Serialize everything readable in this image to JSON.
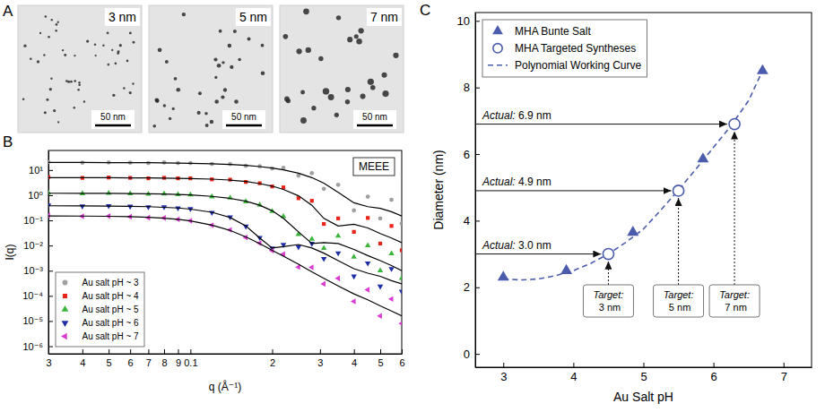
{
  "chart_data": [
    {
      "type": "image",
      "label": "A",
      "images": [
        {
          "title": "3 nm",
          "scale_bar": "50 nm"
        },
        {
          "title": "5 nm",
          "scale_bar": "50 nm"
        },
        {
          "title": "7 nm",
          "scale_bar": "50 nm"
        }
      ]
    },
    {
      "type": "scatter",
      "label": "B",
      "x_label": "q (Å⁻¹)",
      "y_label": "I(q)",
      "annotation": "MEEE",
      "log": true,
      "legend": "bottom-left",
      "x": [
        0.03,
        0.04,
        0.05,
        0.06,
        0.07,
        0.08,
        0.09,
        0.1,
        0.12,
        0.14,
        0.16,
        0.18,
        0.2,
        0.22,
        0.25,
        0.28,
        0.31,
        0.35,
        0.4,
        0.45,
        0.5,
        0.55,
        0.6
      ],
      "xlim": [
        0.03,
        0.6
      ],
      "xticks": [
        {
          "value": 0.03,
          "label": "3"
        },
        {
          "value": 0.04,
          "label": "4"
        },
        {
          "value": 0.05,
          "label": "5"
        },
        {
          "value": 0.06,
          "label": "6"
        },
        {
          "value": 0.07,
          "label": "7"
        },
        {
          "value": 0.08,
          "label": "8"
        },
        {
          "value": 0.09,
          "label": "9"
        },
        0.1,
        {
          "value": 0.2,
          "label": "2"
        },
        {
          "value": 0.3,
          "label": "3"
        },
        {
          "value": 0.4,
          "label": "4"
        },
        {
          "value": 0.5,
          "label": "5"
        },
        {
          "value": 0.6,
          "label": "6"
        }
      ],
      "ylim": [
        5e-07,
        60
      ],
      "yticks": [
        {
          "value": 1e-06,
          "label": "10⁻⁶"
        },
        {
          "value": 1e-05,
          "label": "10⁻⁵"
        },
        {
          "value": 0.0001,
          "label": "10⁻⁴"
        },
        {
          "value": 0.001,
          "label": "10⁻³"
        },
        {
          "value": 0.01,
          "label": "10⁻²"
        },
        {
          "value": 0.1,
          "label": "10⁻¹"
        },
        {
          "value": 1,
          "label": "10⁰"
        },
        {
          "value": 10,
          "label": "10¹"
        }
      ],
      "series": [
        {
          "name": "Au salt pH ~ 3",
          "color": "#a0a0a0",
          "marker": "circle",
          "values": [
            21,
            19.5,
            20.2,
            19.7,
            18.9,
            19.9,
            19,
            19,
            17.4,
            17.4,
            14.7,
            14.1,
            11.6,
            12.2,
            6,
            7.5,
            1.8,
            2.6,
            0.25,
            0.88,
            0.12,
            0.66,
            0.075
          ],
          "fit": [
            20,
            19.9,
            19.8,
            19.7,
            19.5,
            19.3,
            19,
            18.6,
            17.8,
            16.7,
            15.3,
            13.7,
            12,
            10.2,
            7.5,
            5,
            3,
            1.3,
            0.5,
            0.35,
            0.3,
            0.22,
            0.15
          ]
        },
        {
          "name": "Au salt pH ~ 4",
          "color": "#e8251b",
          "marker": "square",
          "values": [
            5.25,
            4.88,
            5.05,
            4.9,
            4.7,
            4.92,
            4.7,
            4.69,
            4.26,
            4.16,
            3.36,
            2.99,
            2.23,
            2.04,
            0.76,
            0.6,
            0.072,
            0.12,
            0.035,
            0.125,
            0.012,
            0.06,
            0.0065
          ],
          "fit": [
            5,
            4.98,
            4.95,
            4.9,
            4.85,
            4.78,
            4.7,
            4.6,
            4.35,
            4.0,
            3.5,
            2.9,
            2.3,
            1.7,
            0.95,
            0.4,
            0.12,
            0.06,
            0.07,
            0.05,
            0.03,
            0.02,
            0.013
          ]
        },
        {
          "name": "Au salt pH ~ 5",
          "color": "#3cb53c",
          "marker": "triangle-up",
          "values": [
            1.26,
            1.17,
            1.2,
            1.16,
            1.11,
            1.14,
            1.07,
            1.04,
            0.88,
            0.78,
            0.56,
            0.41,
            0.23,
            0.144,
            0.028,
            0.018,
            0.0078,
            0.024,
            0.0035,
            0.01,
            0.001,
            0.0048,
            0.0005
          ],
          "fit": [
            1.2,
            1.19,
            1.18,
            1.16,
            1.14,
            1.11,
            1.07,
            1.02,
            0.9,
            0.75,
            0.58,
            0.4,
            0.24,
            0.12,
            0.035,
            0.012,
            0.013,
            0.012,
            0.007,
            0.004,
            0.0025,
            0.0016,
            0.001
          ]
        },
        {
          "name": "Au salt pH ~ 6",
          "color": "#1f2fa8",
          "marker": "triangle-down",
          "values": [
            0.4,
            0.368,
            0.377,
            0.36,
            0.34,
            0.34,
            0.31,
            0.286,
            0.206,
            0.135,
            0.058,
            0.0206,
            0.0078,
            0.0108,
            0.0088,
            0.012,
            0.003,
            0.005,
            0.0006,
            0.002,
            0.00024,
            0.0012,
            0.00015
          ],
          "fit": [
            0.38,
            0.375,
            0.37,
            0.36,
            0.35,
            0.33,
            0.31,
            0.28,
            0.21,
            0.13,
            0.06,
            0.02,
            0.008,
            0.009,
            0.011,
            0.008,
            0.005,
            0.0025,
            0.0012,
            0.0008,
            0.0006,
            0.0004,
            0.0003
          ]
        },
        {
          "name": "Au salt pH ~ 7",
          "color": "#d93bd0",
          "marker": "triangle-left",
          "values": [
            0.158,
            0.145,
            0.148,
            0.14,
            0.128,
            0.126,
            0.11,
            0.097,
            0.064,
            0.042,
            0.021,
            0.0124,
            0.0063,
            0.0046,
            0.0014,
            0.00135,
            0.0003,
            0.0005,
            6e-05,
            0.000175,
            1.6e-05,
            7.5e-05,
            8e-06
          ],
          "fit": [
            0.15,
            0.148,
            0.145,
            0.14,
            0.132,
            0.122,
            0.11,
            0.095,
            0.065,
            0.04,
            0.022,
            0.012,
            0.0065,
            0.0038,
            0.0018,
            0.0009,
            0.0005,
            0.00025,
            0.00012,
            7e-05,
            4e-05,
            2.5e-05,
            1.6e-05
          ]
        }
      ]
    },
    {
      "type": "scatter",
      "label": "C",
      "x_label": "Au Salt pH",
      "y_label": "Diameter (nm)",
      "legend": "top-left",
      "xlim": [
        2.6,
        7.4
      ],
      "xticks": [
        3,
        4,
        5,
        6,
        7
      ],
      "ylim": [
        -0.4,
        10.25
      ],
      "yticks": [
        0,
        2,
        4,
        6,
        8,
        10
      ],
      "series": [
        {
          "name": "MHA Bunte Salt",
          "color": "#4b5cad",
          "marker": "triangle-up",
          "x": [
            3.0,
            3.9,
            4.85,
            5.85,
            6.7
          ],
          "values": [
            2.3,
            2.5,
            3.65,
            5.85,
            8.5
          ]
        },
        {
          "name": "MHA Targeted Syntheses",
          "color": "#4b5cad",
          "marker": "open-circle",
          "x": [
            4.5,
            5.5,
            6.3
          ],
          "values": [
            3.0,
            4.9,
            6.9
          ]
        },
        {
          "name": "Polynomial Working Curve",
          "type": "line",
          "line_style": "dashed",
          "color": "#4b5cad",
          "x": [
            3,
            3.25,
            3.5,
            3.75,
            4,
            4.25,
            4.5,
            4.75,
            5,
            5.25,
            5.5,
            5.75,
            6,
            6.25,
            6.5,
            6.7
          ],
          "values": [
            2.25,
            2.22,
            2.25,
            2.35,
            2.5,
            2.72,
            3.0,
            3.35,
            3.75,
            4.32,
            4.92,
            5.55,
            6.2,
            6.85,
            7.6,
            8.5
          ]
        }
      ],
      "actual_labels": [
        "Actual: 3.0 nm",
        "Actual: 4.9 nm",
        "Actual: 6.9 nm"
      ],
      "target_labels": [
        "Target: 3 nm",
        "Target: 5 nm",
        "Target: 7 nm"
      ]
    }
  ]
}
